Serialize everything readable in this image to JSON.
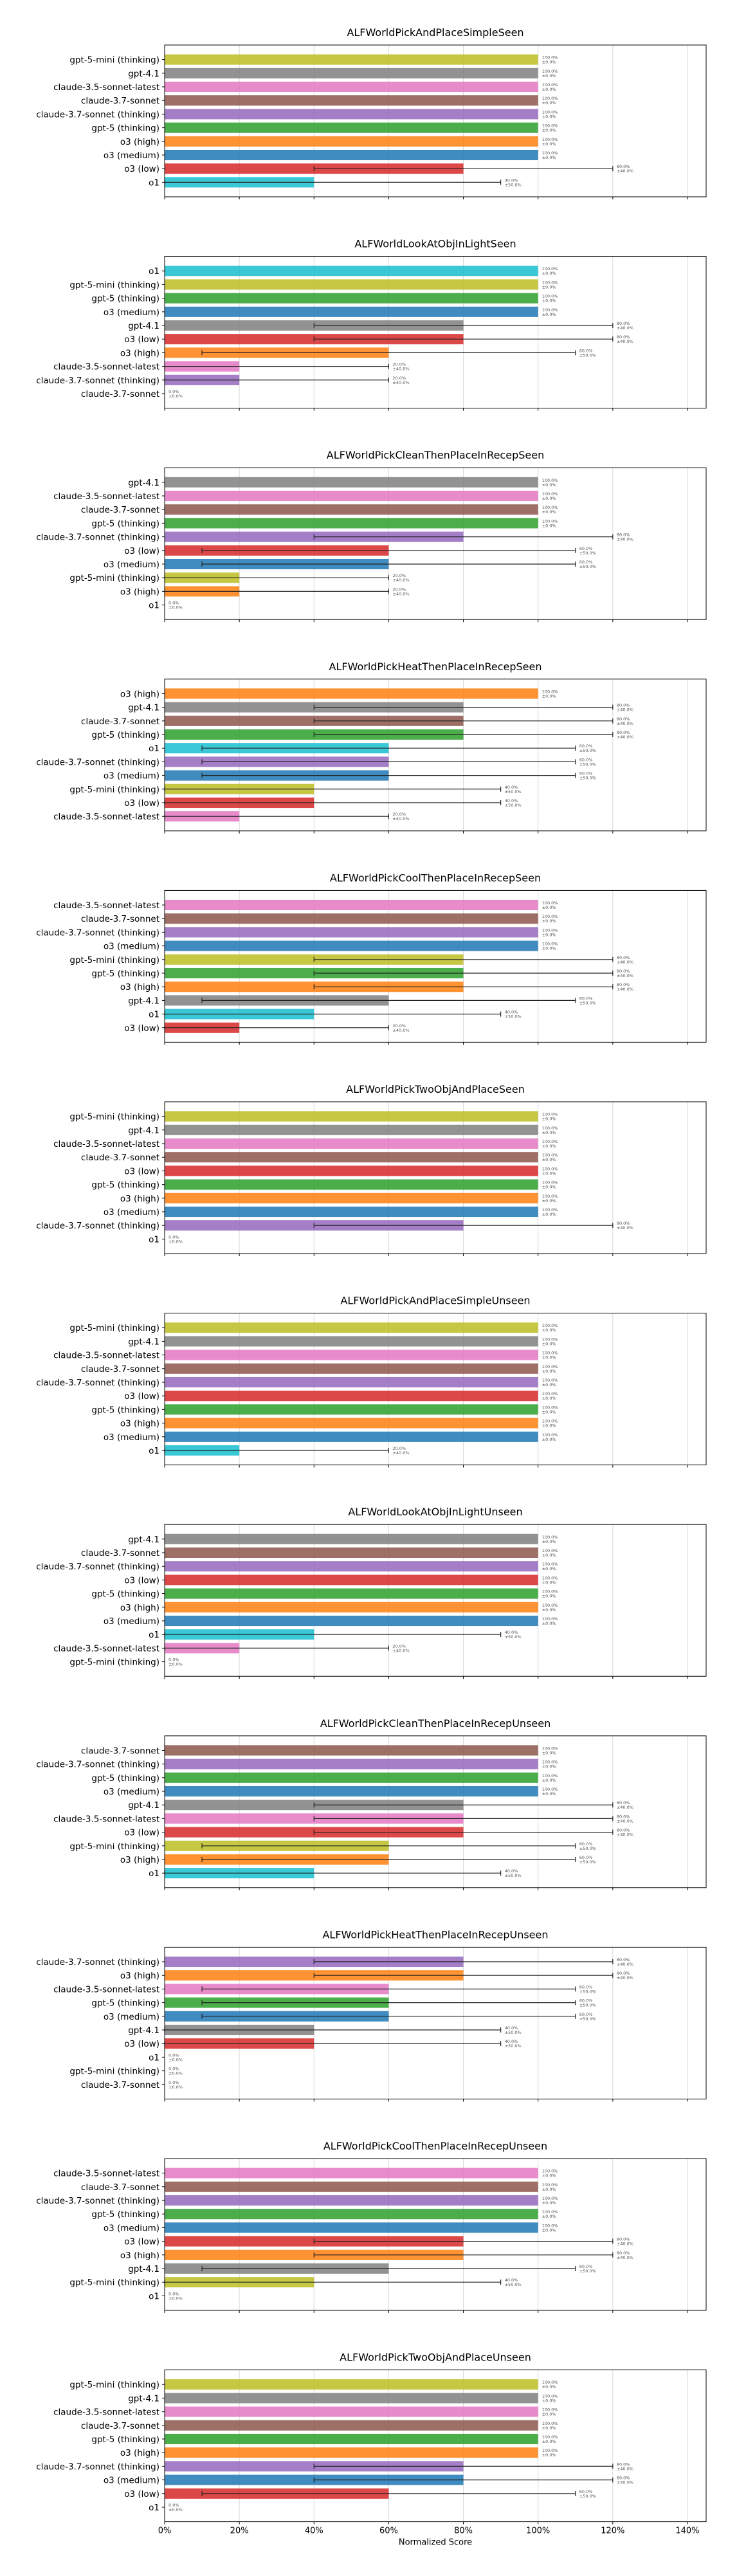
{
  "colors": {
    "gpt-5-mini (thinking)": "#bcbd22",
    "gpt-4.1": "#7f7f7f",
    "claude-3.5-sonnet-latest": "#e377c2",
    "claude-3.7-sonnet": "#8c564b",
    "claude-3.7-sonnet (thinking)": "#9467bd",
    "gpt-5 (thinking)": "#2ca02c",
    "o3 (high)": "#ff7f0e",
    "o3 (medium)": "#1f77b4",
    "o3 (low)": "#d62728",
    "o1": "#17becf"
  },
  "chart_data": [
    {
      "type": "bar",
      "orientation": "horizontal",
      "title": "ALFWorldPickAndPlaceSimpleSeen",
      "categories": [
        "gpt-5-mini (thinking)",
        "gpt-4.1",
        "claude-3.5-sonnet-latest",
        "claude-3.7-sonnet",
        "claude-3.7-sonnet (thinking)",
        "gpt-5 (thinking)",
        "o3 (high)",
        "o3 (medium)",
        "o3 (low)",
        "o1"
      ],
      "values": [
        100,
        100,
        100,
        100,
        100,
        100,
        100,
        100,
        80,
        40
      ],
      "errors": [
        0,
        0,
        0,
        0,
        0,
        0,
        0,
        0,
        40,
        50
      ],
      "xlim": [
        0,
        145
      ],
      "xticks": [
        0,
        20,
        40,
        60,
        80,
        100,
        120,
        140
      ],
      "grid": true
    },
    {
      "type": "bar",
      "orientation": "horizontal",
      "title": "ALFWorldLookAtObjInLightSeen",
      "categories": [
        "o1",
        "gpt-5-mini (thinking)",
        "gpt-5 (thinking)",
        "o3 (medium)",
        "gpt-4.1",
        "o3 (low)",
        "o3 (high)",
        "claude-3.5-sonnet-latest",
        "claude-3.7-sonnet (thinking)",
        "claude-3.7-sonnet"
      ],
      "values": [
        100,
        100,
        100,
        100,
        80,
        80,
        60,
        20,
        20,
        0
      ],
      "errors": [
        0,
        0,
        0,
        0,
        40,
        40,
        50,
        40,
        40,
        0
      ],
      "xlim": [
        0,
        145
      ],
      "xticks": [
        0,
        20,
        40,
        60,
        80,
        100,
        120,
        140
      ],
      "grid": true
    },
    {
      "type": "bar",
      "orientation": "horizontal",
      "title": "ALFWorldPickCleanThenPlaceInRecepSeen",
      "categories": [
        "gpt-4.1",
        "claude-3.5-sonnet-latest",
        "claude-3.7-sonnet",
        "gpt-5 (thinking)",
        "claude-3.7-sonnet (thinking)",
        "o3 (low)",
        "o3 (medium)",
        "gpt-5-mini (thinking)",
        "o3 (high)",
        "o1"
      ],
      "values": [
        100,
        100,
        100,
        100,
        80,
        60,
        60,
        20,
        20,
        0
      ],
      "errors": [
        0,
        0,
        0,
        0,
        40,
        50,
        50,
        40,
        40,
        0
      ],
      "xlim": [
        0,
        145
      ],
      "xticks": [
        0,
        20,
        40,
        60,
        80,
        100,
        120,
        140
      ],
      "grid": true
    },
    {
      "type": "bar",
      "orientation": "horizontal",
      "title": "ALFWorldPickHeatThenPlaceInRecepSeen",
      "categories": [
        "o3 (high)",
        "gpt-4.1",
        "claude-3.7-sonnet",
        "gpt-5 (thinking)",
        "o1",
        "claude-3.7-sonnet (thinking)",
        "o3 (medium)",
        "gpt-5-mini (thinking)",
        "o3 (low)",
        "claude-3.5-sonnet-latest"
      ],
      "values": [
        100,
        80,
        80,
        80,
        60,
        60,
        60,
        40,
        40,
        20
      ],
      "errors": [
        0,
        40,
        40,
        40,
        50,
        50,
        50,
        50,
        50,
        40
      ],
      "xlim": [
        0,
        145
      ],
      "xticks": [
        0,
        20,
        40,
        60,
        80,
        100,
        120,
        140
      ],
      "grid": true
    },
    {
      "type": "bar",
      "orientation": "horizontal",
      "title": "ALFWorldPickCoolThenPlaceInRecepSeen",
      "categories": [
        "claude-3.5-sonnet-latest",
        "claude-3.7-sonnet",
        "claude-3.7-sonnet (thinking)",
        "o3 (medium)",
        "gpt-5-mini (thinking)",
        "gpt-5 (thinking)",
        "o3 (high)",
        "gpt-4.1",
        "o1",
        "o3 (low)"
      ],
      "values": [
        100,
        100,
        100,
        100,
        80,
        80,
        80,
        60,
        40,
        20
      ],
      "errors": [
        0,
        0,
        0,
        0,
        40,
        40,
        40,
        50,
        50,
        40
      ],
      "xlim": [
        0,
        145
      ],
      "xticks": [
        0,
        20,
        40,
        60,
        80,
        100,
        120,
        140
      ],
      "grid": true
    },
    {
      "type": "bar",
      "orientation": "horizontal",
      "title": "ALFWorldPickTwoObjAndPlaceSeen",
      "categories": [
        "gpt-5-mini (thinking)",
        "gpt-4.1",
        "claude-3.5-sonnet-latest",
        "claude-3.7-sonnet",
        "o3 (low)",
        "gpt-5 (thinking)",
        "o3 (high)",
        "o3 (medium)",
        "claude-3.7-sonnet (thinking)",
        "o1"
      ],
      "values": [
        100,
        100,
        100,
        100,
        100,
        100,
        100,
        100,
        80,
        0
      ],
      "errors": [
        0,
        0,
        0,
        0,
        0,
        0,
        0,
        0,
        40,
        0
      ],
      "xlim": [
        0,
        145
      ],
      "xticks": [
        0,
        20,
        40,
        60,
        80,
        100,
        120,
        140
      ],
      "grid": true
    },
    {
      "type": "bar",
      "orientation": "horizontal",
      "title": "ALFWorldPickAndPlaceSimpleUnseen",
      "categories": [
        "gpt-5-mini (thinking)",
        "gpt-4.1",
        "claude-3.5-sonnet-latest",
        "claude-3.7-sonnet",
        "claude-3.7-sonnet (thinking)",
        "o3 (low)",
        "gpt-5 (thinking)",
        "o3 (high)",
        "o3 (medium)",
        "o1"
      ],
      "values": [
        100,
        100,
        100,
        100,
        100,
        100,
        100,
        100,
        100,
        20
      ],
      "errors": [
        0,
        0,
        0,
        0,
        0,
        0,
        0,
        0,
        0,
        40
      ],
      "xlim": [
        0,
        145
      ],
      "xticks": [
        0,
        20,
        40,
        60,
        80,
        100,
        120,
        140
      ],
      "grid": true
    },
    {
      "type": "bar",
      "orientation": "horizontal",
      "title": "ALFWorldLookAtObjInLightUnseen",
      "categories": [
        "gpt-4.1",
        "claude-3.7-sonnet",
        "claude-3.7-sonnet (thinking)",
        "o3 (low)",
        "gpt-5 (thinking)",
        "o3 (high)",
        "o3 (medium)",
        "o1",
        "claude-3.5-sonnet-latest",
        "gpt-5-mini (thinking)"
      ],
      "values": [
        100,
        100,
        100,
        100,
        100,
        100,
        100,
        40,
        20,
        0
      ],
      "errors": [
        0,
        0,
        0,
        0,
        0,
        0,
        0,
        50,
        40,
        0
      ],
      "xlim": [
        0,
        145
      ],
      "xticks": [
        0,
        20,
        40,
        60,
        80,
        100,
        120,
        140
      ],
      "grid": true
    },
    {
      "type": "bar",
      "orientation": "horizontal",
      "title": "ALFWorldPickCleanThenPlaceInRecepUnseen",
      "categories": [
        "claude-3.7-sonnet",
        "claude-3.7-sonnet (thinking)",
        "gpt-5 (thinking)",
        "o3 (medium)",
        "gpt-4.1",
        "claude-3.5-sonnet-latest",
        "o3 (low)",
        "gpt-5-mini (thinking)",
        "o3 (high)",
        "o1"
      ],
      "values": [
        100,
        100,
        100,
        100,
        80,
        80,
        80,
        60,
        60,
        40
      ],
      "errors": [
        0,
        0,
        0,
        0,
        40,
        40,
        40,
        50,
        50,
        50
      ],
      "xlim": [
        0,
        145
      ],
      "xticks": [
        0,
        20,
        40,
        60,
        80,
        100,
        120,
        140
      ],
      "grid": true
    },
    {
      "type": "bar",
      "orientation": "horizontal",
      "title": "ALFWorldPickHeatThenPlaceInRecepUnseen",
      "categories": [
        "claude-3.7-sonnet (thinking)",
        "o3 (high)",
        "claude-3.5-sonnet-latest",
        "gpt-5 (thinking)",
        "o3 (medium)",
        "gpt-4.1",
        "o3 (low)",
        "o1",
        "gpt-5-mini (thinking)",
        "claude-3.7-sonnet"
      ],
      "values": [
        80,
        80,
        60,
        60,
        60,
        40,
        40,
        0,
        0,
        0
      ],
      "errors": [
        40,
        40,
        50,
        50,
        50,
        50,
        50,
        0,
        0,
        0
      ],
      "xlim": [
        0,
        145
      ],
      "xticks": [
        0,
        20,
        40,
        60,
        80,
        100,
        120,
        140
      ],
      "grid": true
    },
    {
      "type": "bar",
      "orientation": "horizontal",
      "title": "ALFWorldPickCoolThenPlaceInRecepUnseen",
      "categories": [
        "claude-3.5-sonnet-latest",
        "claude-3.7-sonnet",
        "claude-3.7-sonnet (thinking)",
        "gpt-5 (thinking)",
        "o3 (medium)",
        "o3 (low)",
        "o3 (high)",
        "gpt-4.1",
        "gpt-5-mini (thinking)",
        "o1"
      ],
      "values": [
        100,
        100,
        100,
        100,
        100,
        80,
        80,
        60,
        40,
        0
      ],
      "errors": [
        0,
        0,
        0,
        0,
        0,
        40,
        40,
        50,
        50,
        0
      ],
      "xlim": [
        0,
        145
      ],
      "xticks": [
        0,
        20,
        40,
        60,
        80,
        100,
        120,
        140
      ],
      "grid": true
    },
    {
      "type": "bar",
      "orientation": "horizontal",
      "title": "ALFWorldPickTwoObjAndPlaceUnseen",
      "categories": [
        "gpt-5-mini (thinking)",
        "gpt-4.1",
        "claude-3.5-sonnet-latest",
        "claude-3.7-sonnet",
        "gpt-5 (thinking)",
        "o3 (high)",
        "claude-3.7-sonnet (thinking)",
        "o3 (medium)",
        "o3 (low)",
        "o1"
      ],
      "values": [
        100,
        100,
        100,
        100,
        100,
        100,
        80,
        80,
        60,
        0
      ],
      "errors": [
        0,
        0,
        0,
        0,
        0,
        0,
        40,
        40,
        50,
        0
      ],
      "xlim": [
        0,
        145
      ],
      "xticks": [
        0,
        20,
        40,
        60,
        80,
        100,
        120,
        140
      ],
      "grid": true,
      "xlabel": "Normalized Score",
      "show_xticklabels": true
    }
  ]
}
